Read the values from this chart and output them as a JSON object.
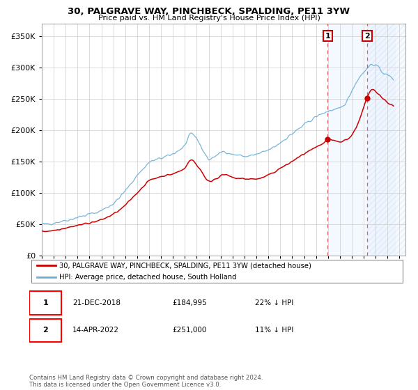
{
  "title": "30, PALGRAVE WAY, PINCHBECK, SPALDING, PE11 3YW",
  "subtitle": "Price paid vs. HM Land Registry's House Price Index (HPI)",
  "legend_line1": "30, PALGRAVE WAY, PINCHBECK, SPALDING, PE11 3YW (detached house)",
  "legend_line2": "HPI: Average price, detached house, South Holland",
  "annotation1_date": "21-DEC-2018",
  "annotation1_price": "£184,995",
  "annotation1_hpi": "22% ↓ HPI",
  "annotation2_date": "14-APR-2022",
  "annotation2_price": "£251,000",
  "annotation2_hpi": "11% ↓ HPI",
  "copyright": "Contains HM Land Registry data © Crown copyright and database right 2024.\nThis data is licensed under the Open Government Licence v3.0.",
  "hpi_color": "#6baed6",
  "price_color": "#cc0000",
  "sale1_date_num": 2018.97,
  "sale1_price": 184995,
  "sale2_date_num": 2022.28,
  "sale2_price": 251000,
  "ylim": [
    0,
    370000
  ],
  "xlim_start": 1995.0,
  "xlim_end": 2025.5,
  "shaded_start": 2018.97,
  "shaded_end": 2024.75,
  "hatch_start": 2022.28,
  "hatch_end": 2025.5,
  "hpi_anchors_t": [
    1995.0,
    1995.5,
    1996.0,
    1996.5,
    1997.0,
    1997.5,
    1998.0,
    1998.5,
    1999.0,
    1999.5,
    2000.0,
    2000.5,
    2001.0,
    2001.5,
    2002.0,
    2002.5,
    2003.0,
    2003.5,
    2004.0,
    2004.5,
    2005.0,
    2005.5,
    2006.0,
    2006.5,
    2007.0,
    2007.25,
    2007.5,
    2007.75,
    2008.0,
    2008.25,
    2008.5,
    2008.75,
    2009.0,
    2009.25,
    2009.5,
    2009.75,
    2010.0,
    2010.5,
    2011.0,
    2011.5,
    2012.0,
    2012.5,
    2013.0,
    2013.5,
    2014.0,
    2014.5,
    2015.0,
    2015.5,
    2016.0,
    2016.5,
    2017.0,
    2017.5,
    2018.0,
    2018.5,
    2019.0,
    2019.5,
    2020.0,
    2020.25,
    2020.5,
    2020.75,
    2021.0,
    2021.25,
    2021.5,
    2021.75,
    2022.0,
    2022.25,
    2022.5,
    2022.75,
    2023.0,
    2023.25,
    2023.5,
    2023.75,
    2024.0,
    2024.25,
    2024.5
  ],
  "hpi_anchors_v": [
    50000,
    50500,
    52000,
    54000,
    56000,
    58000,
    61000,
    63000,
    66000,
    68000,
    72000,
    77000,
    83000,
    92000,
    103000,
    115000,
    128000,
    138000,
    148000,
    152000,
    155000,
    158000,
    162000,
    168000,
    176000,
    185000,
    193000,
    192000,
    186000,
    178000,
    168000,
    160000,
    153000,
    155000,
    158000,
    160000,
    164000,
    165000,
    161000,
    160000,
    158000,
    159000,
    161000,
    164000,
    168000,
    173000,
    180000,
    187000,
    194000,
    201000,
    208000,
    215000,
    221000,
    226000,
    230000,
    232000,
    234000,
    238000,
    244000,
    252000,
    263000,
    272000,
    280000,
    287000,
    293000,
    297000,
    303000,
    305000,
    303000,
    299000,
    294000,
    290000,
    287000,
    285000,
    282000
  ],
  "price_anchors_t": [
    1995.0,
    1995.5,
    1996.0,
    1996.5,
    1997.0,
    1997.5,
    1998.0,
    1998.5,
    1999.0,
    1999.5,
    2000.0,
    2000.5,
    2001.0,
    2001.5,
    2002.0,
    2002.5,
    2003.0,
    2003.5,
    2004.0,
    2004.5,
    2005.0,
    2005.5,
    2006.0,
    2006.5,
    2007.0,
    2007.25,
    2007.5,
    2007.75,
    2008.0,
    2008.25,
    2008.5,
    2008.75,
    2009.0,
    2009.25,
    2009.5,
    2009.75,
    2010.0,
    2010.5,
    2011.0,
    2011.5,
    2012.0,
    2012.5,
    2013.0,
    2013.5,
    2014.0,
    2014.5,
    2015.0,
    2015.5,
    2016.0,
    2016.5,
    2017.0,
    2017.5,
    2018.0,
    2018.5,
    2018.97,
    2019.0,
    2019.25,
    2019.5,
    2019.75,
    2020.0,
    2020.25,
    2020.5,
    2020.75,
    2021.0,
    2021.25,
    2021.5,
    2021.75,
    2022.0,
    2022.28,
    2022.5,
    2022.75,
    2023.0,
    2023.25,
    2023.5,
    2023.75,
    2024.0,
    2024.25,
    2024.5
  ],
  "price_anchors_v": [
    38000,
    39000,
    40000,
    42000,
    44000,
    46000,
    48000,
    50000,
    52000,
    54000,
    57000,
    61000,
    66000,
    72000,
    80000,
    90000,
    100000,
    110000,
    119000,
    123000,
    126000,
    128000,
    130000,
    134000,
    140000,
    147000,
    152000,
    150000,
    144000,
    138000,
    131000,
    123000,
    118000,
    119000,
    122000,
    124000,
    127000,
    128000,
    124000,
    123000,
    122000,
    122000,
    122000,
    124000,
    128000,
    133000,
    139000,
    144000,
    150000,
    156000,
    162000,
    167000,
    172000,
    177000,
    184995,
    185500,
    184000,
    183000,
    182000,
    181000,
    182000,
    185000,
    187000,
    192000,
    200000,
    210000,
    222000,
    236000,
    251000,
    260000,
    265000,
    262000,
    258000,
    252000,
    248000,
    244000,
    241000,
    238000
  ]
}
